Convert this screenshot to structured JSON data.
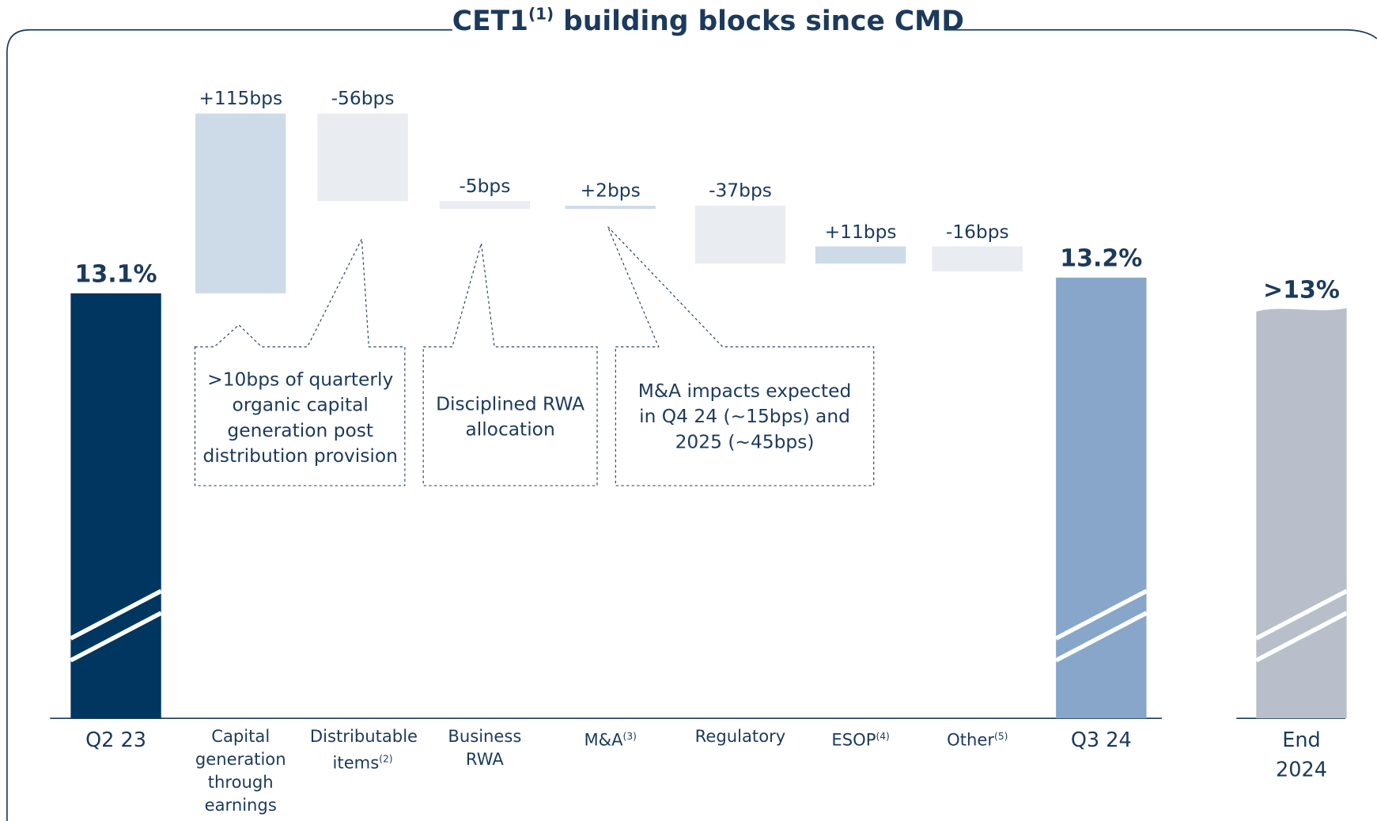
{
  "chart_data": {
    "type": "waterfall",
    "title": "CET1",
    "title_note": "(1)",
    "title_suffix": " building blocks since CMD",
    "categories": [
      "Q2 23",
      "Capital generation through earnings",
      "Distributable items",
      "Business RWA",
      "M&A",
      "Regulatory",
      "ESOP",
      "Other",
      "Q3 24",
      "End 2024"
    ],
    "category_notes": [
      null,
      null,
      "(2)",
      null,
      "(3)",
      null,
      "(4)",
      "(5)",
      null,
      null
    ],
    "measure": [
      "total",
      "relative",
      "relative",
      "relative",
      "relative",
      "relative",
      "relative",
      "relative",
      "total",
      "total"
    ],
    "values": [
      13.1,
      115,
      -56,
      -5,
      2,
      -37,
      11,
      -16,
      13.2,
      13
    ],
    "value_labels": [
      "13.1%",
      "+115bps",
      "-56bps",
      "-5bps",
      "+2bps",
      "-37bps",
      "+11bps",
      "-16bps",
      "13.2%",
      ">13%"
    ],
    "colors": [
      "#00365f",
      "#cddbe8",
      "#e9ecf0",
      "#e9ecf0",
      "#cddbe8",
      "#e9ecf0",
      "#cddbe8",
      "#e9ecf0",
      "#87a6c9",
      "#b8bfcb"
    ],
    "annotations": [
      ">10bps of quarterly organic capital generation post distribution provision",
      "Disciplined RWA allocation",
      "M&A impacts expected in Q4 24 (~15bps) and 2025 (~45bps)"
    ]
  }
}
